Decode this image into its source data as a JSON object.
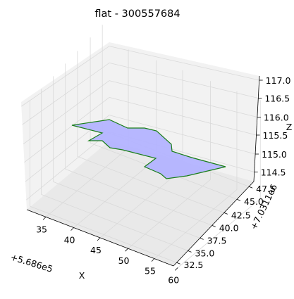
{
  "chart_data": {
    "type": "polygon3d",
    "title": "flat - 300557684",
    "xlabel": "X",
    "ylabel": "Y",
    "zlabel": "Z",
    "x_offset": "+5.686e5",
    "y_offset": "+7.0311e6",
    "x_ticks": [
      "35",
      "40",
      "45",
      "50",
      "55",
      "60"
    ],
    "y_ticks": [
      "32.5",
      "35.0",
      "37.5",
      "40.0",
      "42.5",
      "45.0",
      "47.5"
    ],
    "z_ticks": [
      "114.5",
      "115.0",
      "115.5",
      "116.0",
      "116.5",
      "117.0"
    ],
    "polygon_fill": "#b3b3ff",
    "polygon_edge": "#1a7f1a",
    "grid": true
  }
}
